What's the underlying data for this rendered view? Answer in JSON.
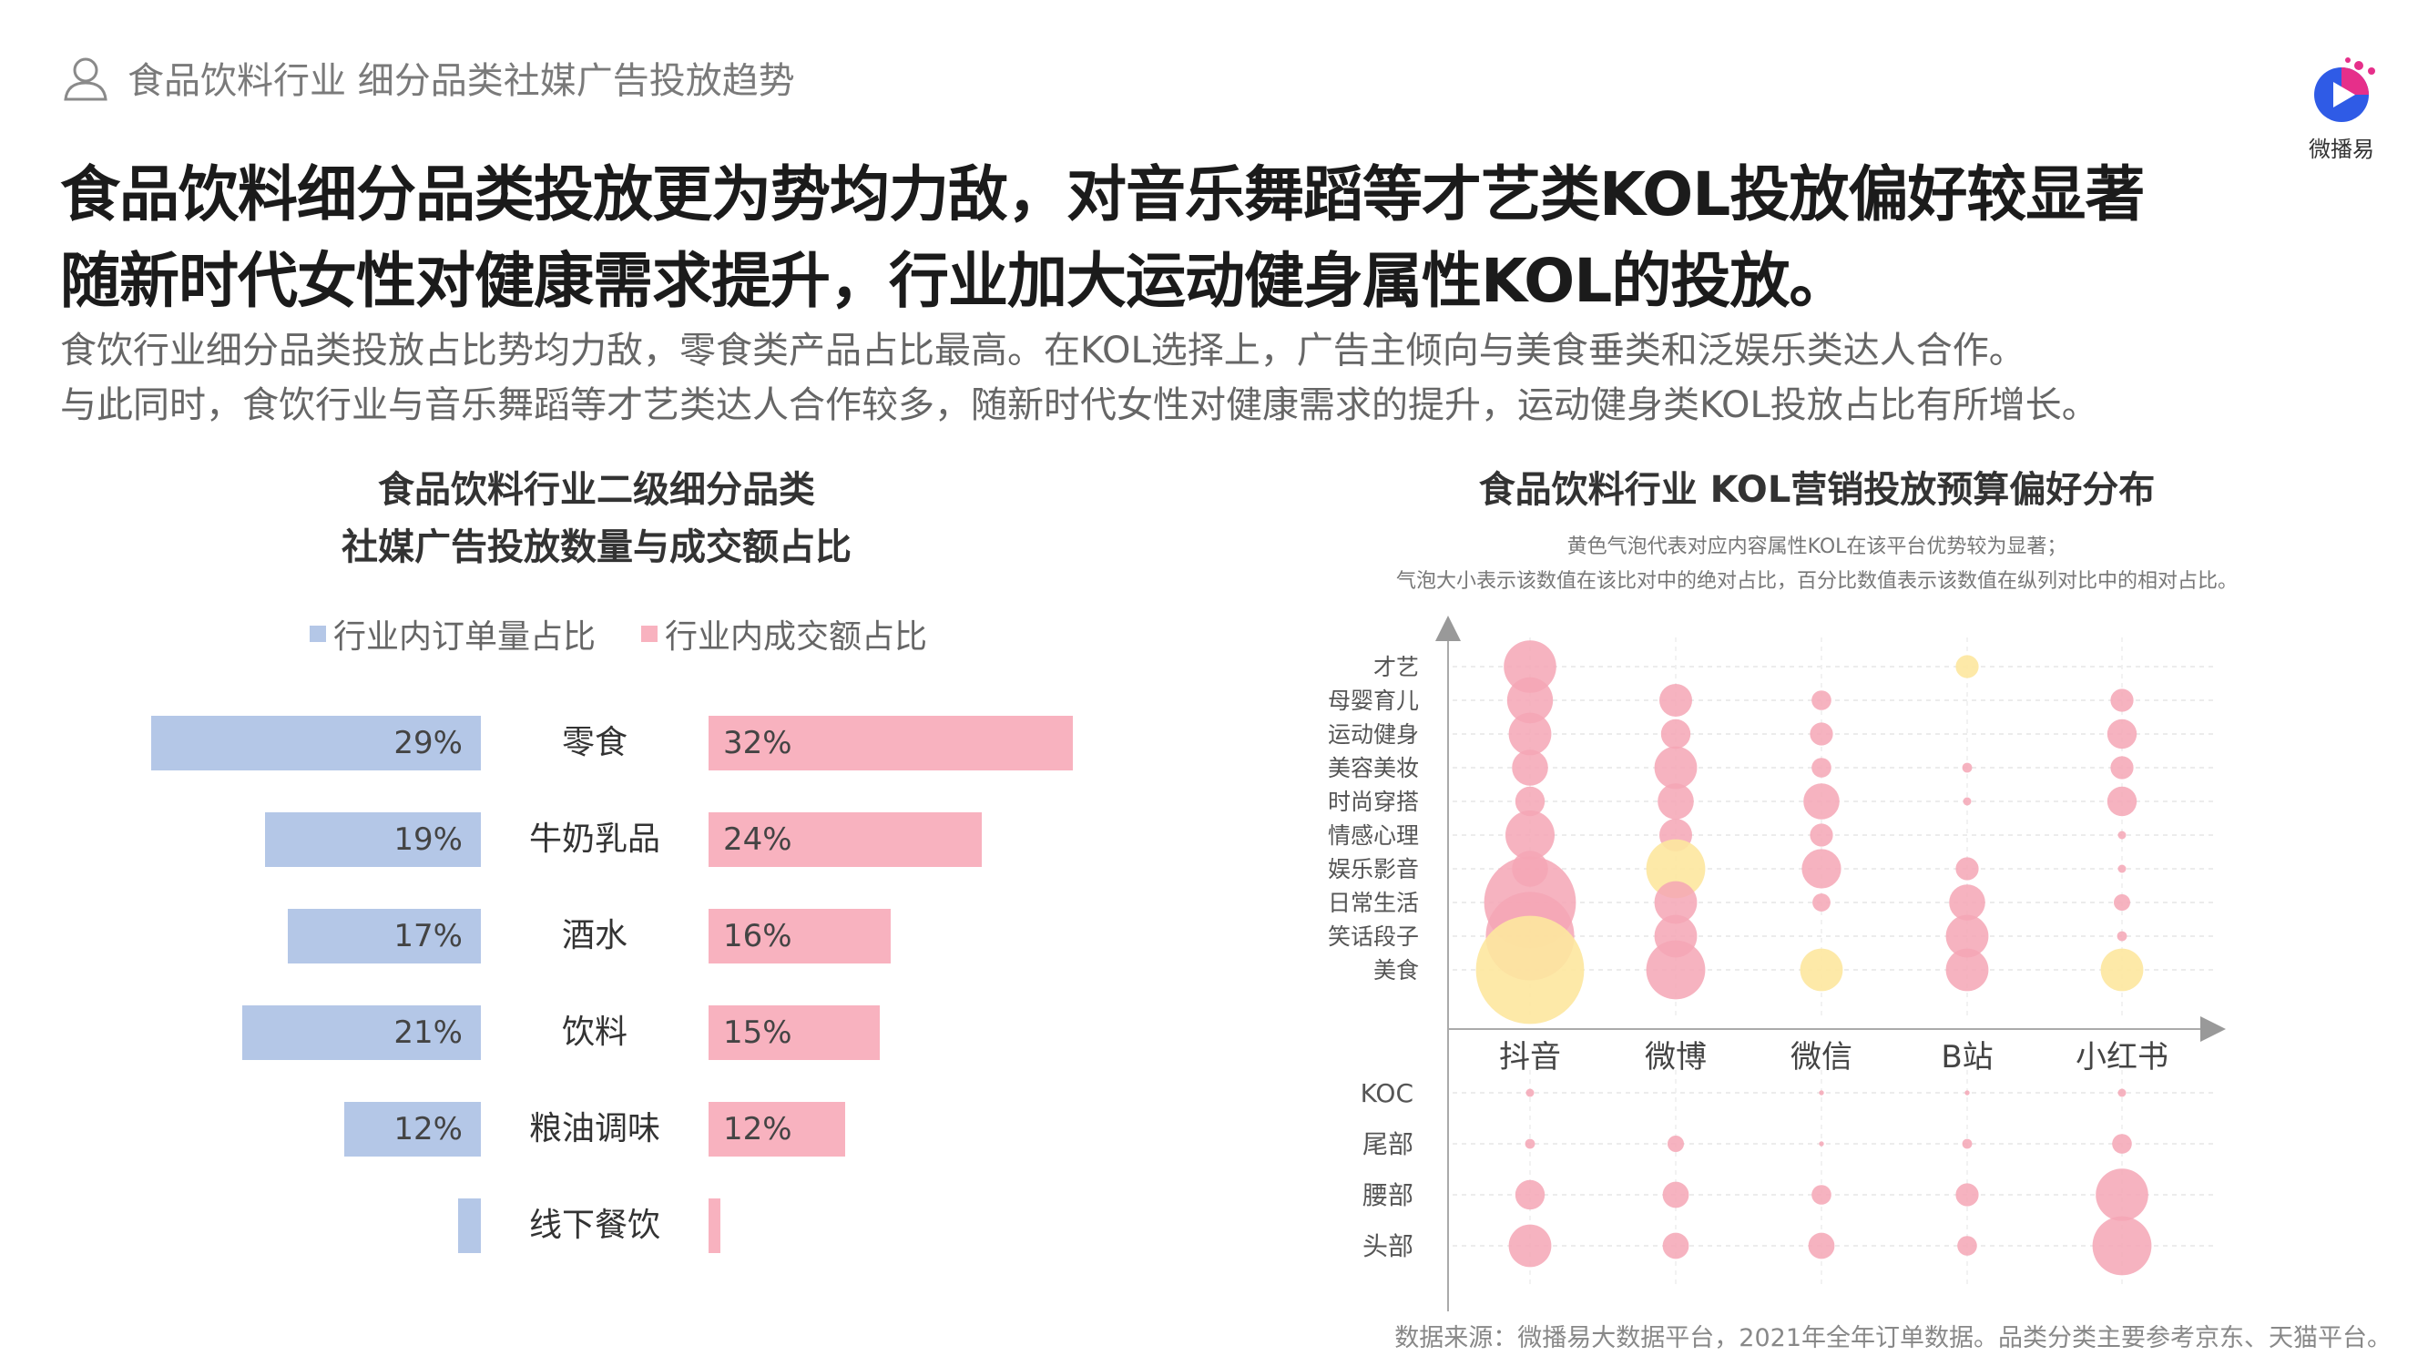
{
  "header": {
    "label": "食品饮料行业 细分品类社媒广告投放趋势"
  },
  "logo": {
    "text": "微播易",
    "icon": "play-logo-icon"
  },
  "headline": {
    "line1": "食品饮料细分品类投放更为势均力敌，对音乐舞蹈等才艺类KOL投放偏好较显著",
    "line2": "随新时代女性对健康需求提升，行业加大运动健身属性KOL的投放。"
  },
  "body": {
    "line1": "食饮行业细分品类投放占比势均力敌，零食类产品占比最高。在KOL选择上，广告主倾向与美食垂类和泛娱乐类达人合作。",
    "line2": "与此同时，食饮行业与音乐舞蹈等才艺类达人合作较多，随新时代女性对健康需求的提升，运动健身类KOL投放占比有所增长。"
  },
  "colors": {
    "blue": "#b4c7e7",
    "pink": "#f8b2bf",
    "yellow": "#fde79e",
    "bubble_pink": "#f4a6b5"
  },
  "chart_data": [
    {
      "type": "bar",
      "title": "食品饮料行业二级细分品类",
      "subtitle": "社媒广告投放数量与成交额占比",
      "categories": [
        "零食",
        "牛奶乳品",
        "酒水",
        "饮料",
        "粮油调味",
        "线下餐饮"
      ],
      "series": [
        {
          "name": "行业内订单量占比",
          "values": [
            29,
            19,
            17,
            21,
            12,
            2
          ],
          "labels": [
            "29%",
            "19%",
            "17%",
            "21%",
            "12%",
            ""
          ]
        },
        {
          "name": "行业内成交额占比",
          "values": [
            32,
            24,
            16,
            15,
            12,
            1
          ],
          "labels": [
            "32%",
            "24%",
            "16%",
            "15%",
            "12%",
            ""
          ]
        }
      ]
    },
    {
      "type": "scatter",
      "title": "食品饮料行业 KOL营销投放预算偏好分布",
      "notes": [
        "黄色气泡代表对应内容属性KOL在该平台优势较为显著；",
        "气泡大小表示该数值在该比对中的绝对占比，百分比数值表示该数值在纵列对比中的相对占比。"
      ],
      "x_categories": [
        "抖音",
        "微博",
        "微信",
        "B站",
        "小红书"
      ],
      "y_categories_top": [
        "才艺",
        "母婴育儿",
        "运动健身",
        "美容美妆",
        "时尚穿搭",
        "情感心理",
        "娱乐影音",
        "日常生活",
        "笑话段子",
        "美食"
      ],
      "y_categories_bottom": [
        "KOC",
        "尾部",
        "腰部",
        "头部"
      ],
      "bubbles_top": [
        {
          "x": "抖音",
          "y": "才艺",
          "size": 3.2,
          "highlight": false
        },
        {
          "x": "抖音",
          "y": "母婴育儿",
          "size": 2.8,
          "highlight": false
        },
        {
          "x": "抖音",
          "y": "运动健身",
          "size": 2.6,
          "highlight": false
        },
        {
          "x": "抖音",
          "y": "美容美妆",
          "size": 2.2,
          "highlight": false
        },
        {
          "x": "抖音",
          "y": "时尚穿搭",
          "size": 1.8,
          "highlight": false
        },
        {
          "x": "抖音",
          "y": "情感心理",
          "size": 3.0,
          "highlight": false
        },
        {
          "x": "抖音",
          "y": "娱乐影音",
          "size": 2.2,
          "highlight": false
        },
        {
          "x": "抖音",
          "y": "日常生活",
          "size": 5.6,
          "highlight": false
        },
        {
          "x": "抖音",
          "y": "笑话段子",
          "size": 5.4,
          "highlight": false
        },
        {
          "x": "抖音",
          "y": "美食",
          "size": 6.6,
          "highlight": true
        },
        {
          "x": "微博",
          "y": "母婴育儿",
          "size": 2.0,
          "highlight": false
        },
        {
          "x": "微博",
          "y": "运动健身",
          "size": 1.8,
          "highlight": false
        },
        {
          "x": "微博",
          "y": "美容美妆",
          "size": 2.6,
          "highlight": false
        },
        {
          "x": "微博",
          "y": "时尚穿搭",
          "size": 2.2,
          "highlight": false
        },
        {
          "x": "微博",
          "y": "情感心理",
          "size": 2.0,
          "highlight": false
        },
        {
          "x": "微博",
          "y": "娱乐影音",
          "size": 3.6,
          "highlight": true
        },
        {
          "x": "微博",
          "y": "日常生活",
          "size": 2.6,
          "highlight": false
        },
        {
          "x": "微博",
          "y": "笑话段子",
          "size": 2.6,
          "highlight": false
        },
        {
          "x": "微博",
          "y": "美食",
          "size": 3.6,
          "highlight": false
        },
        {
          "x": "微信",
          "y": "母婴育儿",
          "size": 1.2,
          "highlight": false
        },
        {
          "x": "微信",
          "y": "运动健身",
          "size": 1.4,
          "highlight": false
        },
        {
          "x": "微信",
          "y": "美容美妆",
          "size": 1.2,
          "highlight": false
        },
        {
          "x": "微信",
          "y": "时尚穿搭",
          "size": 2.2,
          "highlight": false
        },
        {
          "x": "微信",
          "y": "情感心理",
          "size": 1.4,
          "highlight": false
        },
        {
          "x": "微信",
          "y": "娱乐影音",
          "size": 2.4,
          "highlight": false
        },
        {
          "x": "微信",
          "y": "日常生活",
          "size": 1.1,
          "highlight": false
        },
        {
          "x": "微信",
          "y": "美食",
          "size": 2.6,
          "highlight": true
        },
        {
          "x": "B站",
          "y": "才艺",
          "size": 1.4,
          "highlight": true
        },
        {
          "x": "B站",
          "y": "美容美妆",
          "size": 0.6,
          "highlight": false
        },
        {
          "x": "B站",
          "y": "时尚穿搭",
          "size": 0.5,
          "highlight": false
        },
        {
          "x": "B站",
          "y": "娱乐影音",
          "size": 1.4,
          "highlight": false
        },
        {
          "x": "B站",
          "y": "日常生活",
          "size": 2.2,
          "highlight": false
        },
        {
          "x": "B站",
          "y": "笑话段子",
          "size": 2.6,
          "highlight": false
        },
        {
          "x": "B站",
          "y": "美食",
          "size": 2.6,
          "highlight": false
        },
        {
          "x": "小红书",
          "y": "母婴育儿",
          "size": 1.4,
          "highlight": false
        },
        {
          "x": "小红书",
          "y": "运动健身",
          "size": 1.8,
          "highlight": false
        },
        {
          "x": "小红书",
          "y": "美容美妆",
          "size": 1.4,
          "highlight": false
        },
        {
          "x": "小红书",
          "y": "时尚穿搭",
          "size": 1.8,
          "highlight": false
        },
        {
          "x": "小红书",
          "y": "情感心理",
          "size": 0.5,
          "highlight": false
        },
        {
          "x": "小红书",
          "y": "娱乐影音",
          "size": 0.5,
          "highlight": false
        },
        {
          "x": "小红书",
          "y": "日常生活",
          "size": 1.0,
          "highlight": false
        },
        {
          "x": "小红书",
          "y": "笑话段子",
          "size": 0.6,
          "highlight": false
        },
        {
          "x": "小红书",
          "y": "美食",
          "size": 2.6,
          "highlight": true
        }
      ],
      "bubbles_bottom": [
        {
          "x": "抖音",
          "y": "KOC",
          "size": 0.5
        },
        {
          "x": "抖音",
          "y": "尾部",
          "size": 0.6
        },
        {
          "x": "抖音",
          "y": "腰部",
          "size": 1.8
        },
        {
          "x": "抖音",
          "y": "头部",
          "size": 2.6
        },
        {
          "x": "微博",
          "y": "尾部",
          "size": 1.0
        },
        {
          "x": "微博",
          "y": "腰部",
          "size": 1.6
        },
        {
          "x": "微博",
          "y": "头部",
          "size": 1.6
        },
        {
          "x": "微信",
          "y": "KOC",
          "size": 0.3
        },
        {
          "x": "微信",
          "y": "尾部",
          "size": 0.3
        },
        {
          "x": "微信",
          "y": "腰部",
          "size": 1.2
        },
        {
          "x": "微信",
          "y": "头部",
          "size": 1.6
        },
        {
          "x": "B站",
          "y": "KOC",
          "size": 0.3
        },
        {
          "x": "B站",
          "y": "尾部",
          "size": 0.6
        },
        {
          "x": "B站",
          "y": "腰部",
          "size": 1.4
        },
        {
          "x": "B站",
          "y": "头部",
          "size": 1.2
        },
        {
          "x": "小红书",
          "y": "KOC",
          "size": 0.5
        },
        {
          "x": "小红书",
          "y": "尾部",
          "size": 1.2
        },
        {
          "x": "小红书",
          "y": "腰部",
          "size": 3.2
        },
        {
          "x": "小红书",
          "y": "头部",
          "size": 3.6
        }
      ]
    }
  ],
  "source": "数据来源：微播易大数据平台，2021年全年订单数据。品类分类主要参考京东、天猫平台。"
}
